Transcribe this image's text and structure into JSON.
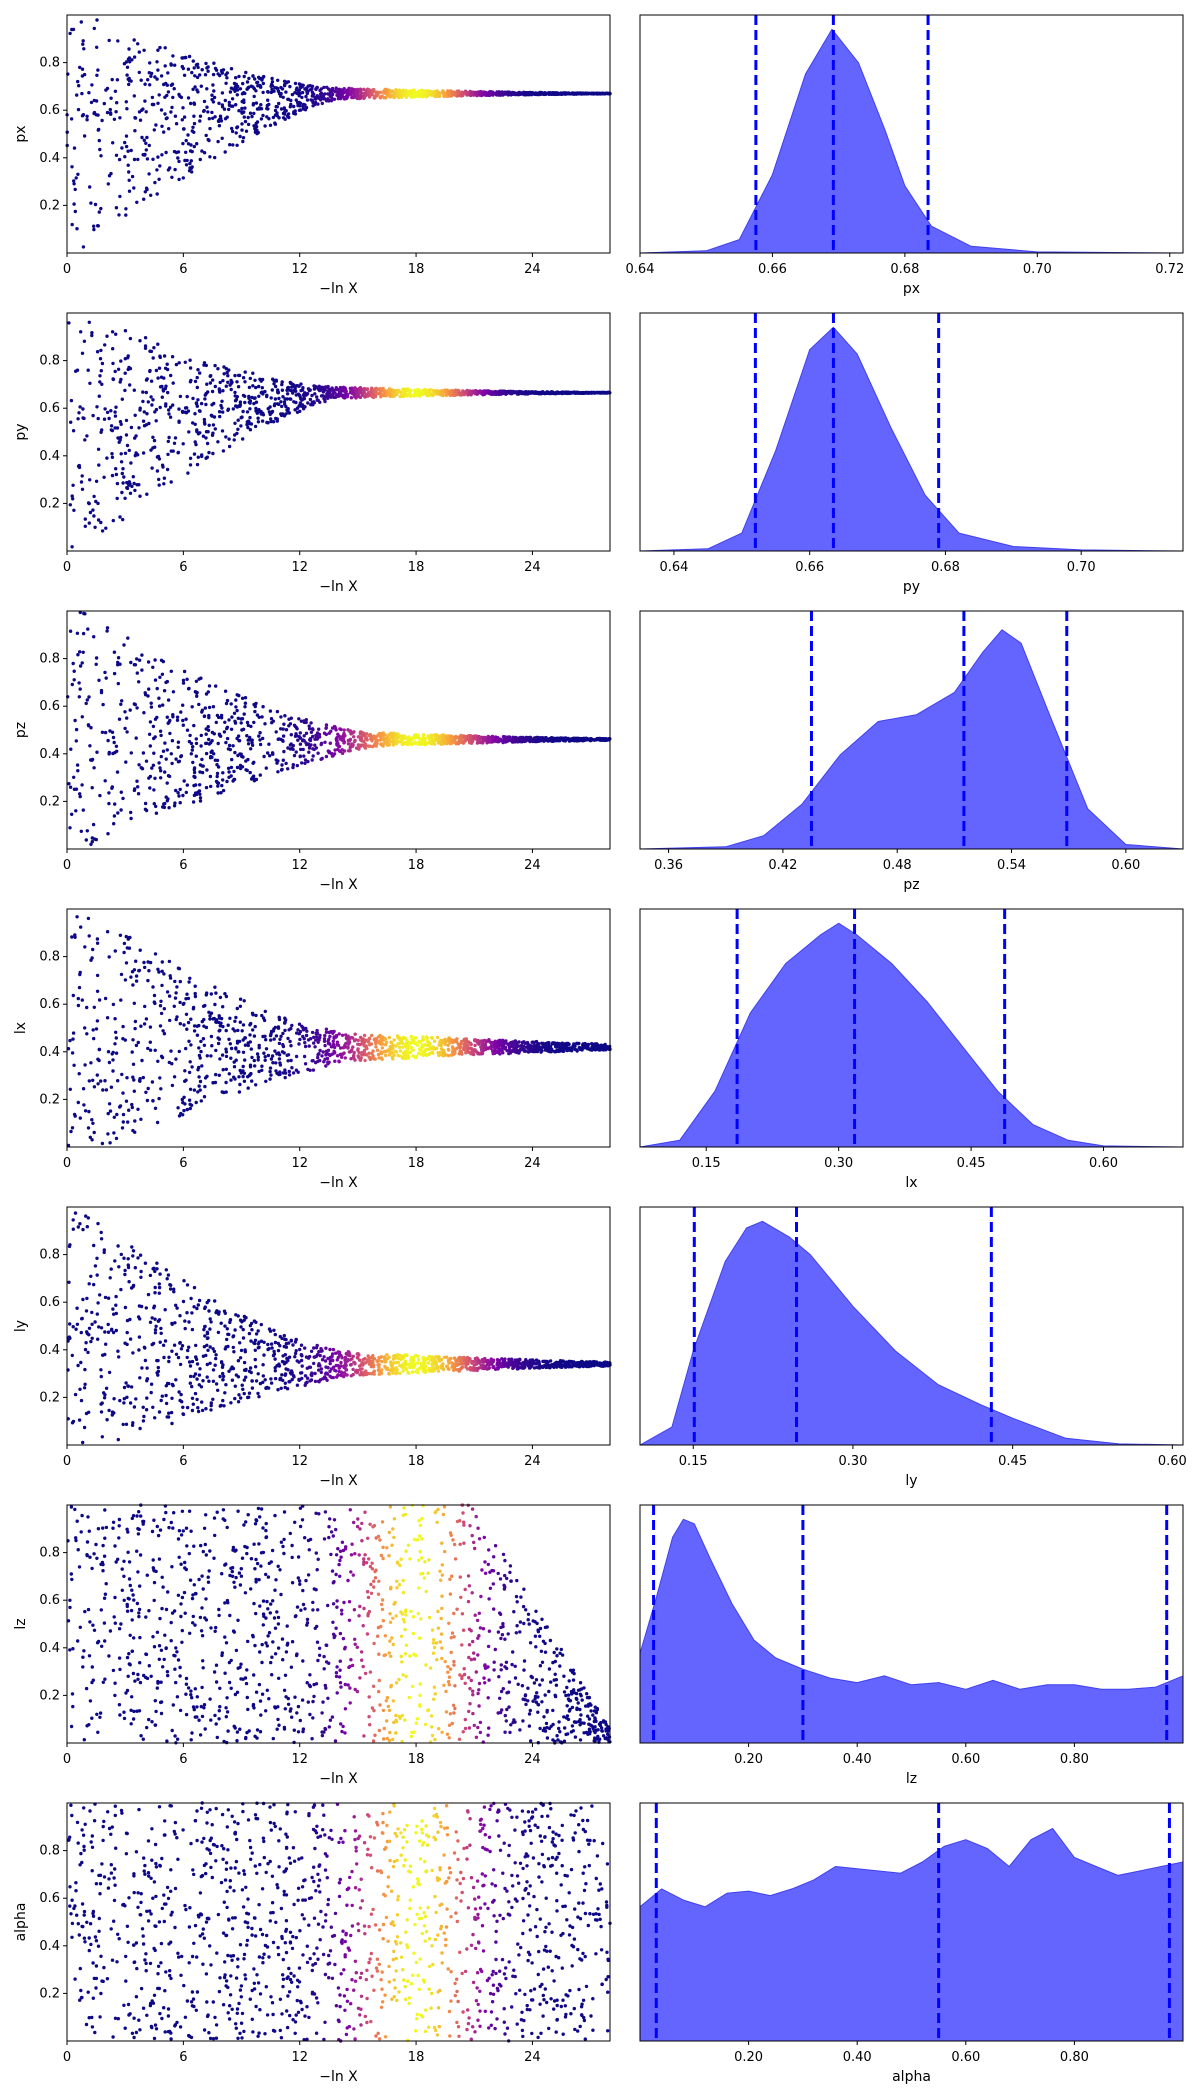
{
  "chart_data": [
    {
      "type": "scatter",
      "ylabel": "px",
      "xlabel": "−ln X",
      "xlim": [
        0,
        28
      ],
      "ylim": [
        0,
        1
      ],
      "xticks": [
        0,
        6,
        12,
        18,
        24
      ],
      "yticks": [
        0.2,
        0.4,
        0.6,
        0.8
      ],
      "colormap": "plasma",
      "profile": {
        "converge_to": 0.67,
        "lower_start": 0.0,
        "lower_rise": 2.5,
        "pinch": 14,
        "end": 28,
        "end_halfwidth": 0.004,
        "hot_center": 18,
        "hot_width": 3
      }
    },
    {
      "type": "area",
      "xlabel": "px",
      "xlim": [
        0.64,
        0.722
      ],
      "xticks": [
        0.64,
        0.66,
        0.68,
        0.7,
        0.72
      ],
      "fill_color": "#6464ff",
      "quantile_lines": [
        0.6575,
        0.6692,
        0.6835
      ],
      "density": {
        "x": [
          0.64,
          0.65,
          0.655,
          0.66,
          0.665,
          0.669,
          0.673,
          0.677,
          0.68,
          0.684,
          0.69,
          0.7,
          0.722
        ],
        "y": [
          0,
          0.01,
          0.06,
          0.35,
          0.8,
          1.0,
          0.85,
          0.55,
          0.3,
          0.12,
          0.03,
          0.005,
          0
        ]
      }
    },
    {
      "type": "scatter",
      "ylabel": "py",
      "xlabel": "−ln X",
      "xlim": [
        0,
        28
      ],
      "ylim": [
        0,
        1
      ],
      "xticks": [
        0,
        6,
        12,
        18,
        24
      ],
      "yticks": [
        0.2,
        0.4,
        0.6,
        0.8
      ],
      "colormap": "plasma",
      "profile": {
        "converge_to": 0.665,
        "lower_start": 0.0,
        "lower_rise": 2.5,
        "pinch": 14,
        "end": 28,
        "end_halfwidth": 0.004,
        "hot_center": 18,
        "hot_width": 3
      }
    },
    {
      "type": "area",
      "xlabel": "py",
      "xlim": [
        0.635,
        0.715
      ],
      "xticks": [
        0.64,
        0.66,
        0.68,
        0.7
      ],
      "fill_color": "#6464ff",
      "quantile_lines": [
        0.652,
        0.6635,
        0.679
      ],
      "density": {
        "x": [
          0.635,
          0.645,
          0.65,
          0.655,
          0.66,
          0.6635,
          0.667,
          0.672,
          0.677,
          0.682,
          0.69,
          0.7,
          0.715
        ],
        "y": [
          0,
          0.01,
          0.08,
          0.45,
          0.9,
          1.0,
          0.88,
          0.55,
          0.25,
          0.08,
          0.02,
          0.005,
          0
        ]
      }
    },
    {
      "type": "scatter",
      "ylabel": "pz",
      "xlabel": "−ln X",
      "xlim": [
        0,
        28
      ],
      "ylim": [
        0,
        1
      ],
      "xticks": [
        0,
        6,
        12,
        18,
        24
      ],
      "yticks": [
        0.2,
        0.4,
        0.6,
        0.8
      ],
      "colormap": "plasma",
      "profile": {
        "converge_to": 0.46,
        "lower_start": 0.0,
        "lower_rise": 9,
        "pinch": 16,
        "end": 28,
        "end_halfwidth": 0.012,
        "hot_center": 18,
        "hot_width": 3.5
      }
    },
    {
      "type": "area",
      "xlabel": "pz",
      "xlim": [
        0.345,
        0.63
      ],
      "xticks": [
        0.36,
        0.42,
        0.48,
        0.54,
        0.6
      ],
      "fill_color": "#6464ff",
      "quantile_lines": [
        0.435,
        0.515,
        0.569
      ],
      "density": {
        "x": [
          0.345,
          0.39,
          0.41,
          0.43,
          0.45,
          0.47,
          0.49,
          0.51,
          0.525,
          0.535,
          0.545,
          0.56,
          0.58,
          0.6,
          0.63
        ],
        "y": [
          0,
          0.01,
          0.06,
          0.2,
          0.42,
          0.57,
          0.6,
          0.7,
          0.88,
          0.98,
          0.92,
          0.6,
          0.18,
          0.02,
          0
        ]
      }
    },
    {
      "type": "scatter",
      "ylabel": "lx",
      "xlabel": "−ln X",
      "xlim": [
        0,
        28
      ],
      "ylim": [
        0,
        1
      ],
      "xticks": [
        0,
        6,
        12,
        18,
        24
      ],
      "yticks": [
        0.2,
        0.4,
        0.6,
        0.8
      ],
      "colormap": "plasma",
      "profile": {
        "converge_to": 0.42,
        "lower_start": 0.02,
        "lower_rise": 8,
        "pinch": 15,
        "end": 28,
        "end_halfwidth": 0.04,
        "hot_center": 18,
        "hot_width": 3.5
      }
    },
    {
      "type": "area",
      "xlabel": "lx",
      "xlim": [
        0.075,
        0.69
      ],
      "xticks": [
        0.15,
        0.3,
        0.45,
        0.6
      ],
      "fill_color": "#6464ff",
      "quantile_lines": [
        0.185,
        0.318,
        0.488
      ],
      "density": {
        "x": [
          0.075,
          0.12,
          0.16,
          0.2,
          0.24,
          0.28,
          0.3,
          0.32,
          0.36,
          0.4,
          0.44,
          0.48,
          0.52,
          0.56,
          0.6,
          0.69
        ],
        "y": [
          0,
          0.03,
          0.25,
          0.6,
          0.82,
          0.95,
          1.0,
          0.95,
          0.82,
          0.65,
          0.45,
          0.25,
          0.1,
          0.03,
          0.005,
          0
        ]
      }
    },
    {
      "type": "scatter",
      "ylabel": "ly",
      "xlabel": "−ln X",
      "xlim": [
        0,
        28
      ],
      "ylim": [
        0,
        1
      ],
      "xticks": [
        0,
        6,
        12,
        18,
        24
      ],
      "yticks": [
        0.2,
        0.4,
        0.6,
        0.8
      ],
      "colormap": "plasma",
      "profile": {
        "converge_to": 0.34,
        "lower_start": 0.02,
        "lower_rise": 8,
        "pinch": 15,
        "end": 28,
        "end_halfwidth": 0.03,
        "hot_center": 18,
        "hot_width": 3.5
      }
    },
    {
      "type": "area",
      "xlabel": "ly",
      "xlim": [
        0.1,
        0.61
      ],
      "xticks": [
        0.15,
        0.3,
        0.45,
        0.6
      ],
      "fill_color": "#6464ff",
      "quantile_lines": [
        0.151,
        0.247,
        0.43
      ],
      "density": {
        "x": [
          0.1,
          0.13,
          0.15,
          0.18,
          0.2,
          0.215,
          0.24,
          0.26,
          0.3,
          0.34,
          0.38,
          0.42,
          0.45,
          0.5,
          0.55,
          0.61
        ],
        "y": [
          0,
          0.08,
          0.42,
          0.82,
          0.97,
          1.0,
          0.93,
          0.85,
          0.62,
          0.42,
          0.27,
          0.18,
          0.12,
          0.03,
          0.005,
          0
        ]
      }
    },
    {
      "type": "scatter",
      "ylabel": "lz",
      "xlabel": "−ln X",
      "xlim": [
        0,
        28
      ],
      "ylim": [
        0,
        1
      ],
      "xticks": [
        0,
        6,
        12,
        18,
        24
      ],
      "yticks": [
        0.2,
        0.4,
        0.6,
        0.8
      ],
      "colormap": "plasma",
      "profile": {
        "converge_to": 0.03,
        "lower_start": 0.0,
        "lower_rise": 0,
        "pinch": 21,
        "end": 28,
        "end_halfwidth": 0.03,
        "hot_center": 18,
        "hot_width": 3,
        "full_span": true
      }
    },
    {
      "type": "area",
      "xlabel": "lz",
      "xlim": [
        0.0,
        1.0
      ],
      "xticks": [
        0.2,
        0.4,
        0.6,
        0.8
      ],
      "fill_color": "#6464ff",
      "quantile_lines": [
        0.025,
        0.3,
        0.97
      ],
      "density": {
        "x": [
          0.0,
          0.03,
          0.06,
          0.08,
          0.1,
          0.13,
          0.17,
          0.21,
          0.25,
          0.3,
          0.35,
          0.4,
          0.45,
          0.5,
          0.55,
          0.6,
          0.65,
          0.7,
          0.75,
          0.8,
          0.85,
          0.9,
          0.95,
          1.0
        ],
        "y": [
          0.4,
          0.65,
          0.92,
          1.0,
          0.98,
          0.82,
          0.62,
          0.46,
          0.38,
          0.33,
          0.29,
          0.27,
          0.3,
          0.26,
          0.27,
          0.24,
          0.28,
          0.24,
          0.26,
          0.26,
          0.24,
          0.24,
          0.25,
          0.3
        ]
      }
    },
    {
      "type": "scatter",
      "ylabel": "alpha",
      "xlabel": "−ln X",
      "xlim": [
        0,
        28
      ],
      "ylim": [
        0,
        1
      ],
      "xticks": [
        0,
        6,
        12,
        18,
        24
      ],
      "yticks": [
        0.2,
        0.4,
        0.6,
        0.8
      ],
      "colormap": "plasma",
      "profile": {
        "converge_to": 0.5,
        "lower_start": 0.0,
        "lower_rise": 0,
        "pinch": 24,
        "end": 28,
        "end_halfwidth": 0.5,
        "hot_center": 18,
        "hot_width": 3,
        "full_span": true
      }
    },
    {
      "type": "area",
      "xlabel": "alpha",
      "xlim": [
        0.0,
        1.0
      ],
      "xticks": [
        0.2,
        0.4,
        0.6,
        0.8
      ],
      "fill_color": "#6464ff",
      "quantile_lines": [
        0.03,
        0.55,
        0.975
      ],
      "density": {
        "x": [
          0.0,
          0.04,
          0.08,
          0.12,
          0.16,
          0.2,
          0.24,
          0.28,
          0.32,
          0.36,
          0.4,
          0.44,
          0.48,
          0.52,
          0.56,
          0.6,
          0.64,
          0.68,
          0.72,
          0.76,
          0.8,
          0.84,
          0.88,
          0.92,
          0.96,
          1.0
        ],
        "y": [
          0.6,
          0.68,
          0.63,
          0.6,
          0.66,
          0.67,
          0.65,
          0.68,
          0.72,
          0.78,
          0.77,
          0.76,
          0.75,
          0.8,
          0.87,
          0.9,
          0.86,
          0.78,
          0.9,
          0.95,
          0.82,
          0.78,
          0.74,
          0.76,
          0.78,
          0.8
        ]
      }
    }
  ]
}
